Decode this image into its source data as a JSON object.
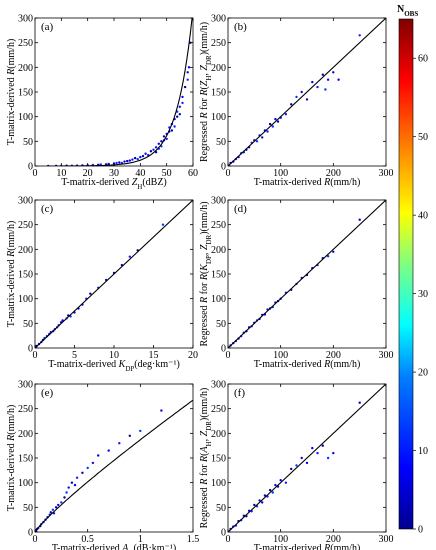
{
  "chart_data": [
    {
      "panel": "(a)",
      "type": "scatter",
      "xlabel": "T-matrix-derived Z_H(dBZ)",
      "ylabel": "T-matrix-derived R(mm/h)",
      "xlim": [
        0,
        60
      ],
      "ylim": [
        0,
        300
      ],
      "xticks": [
        0,
        10,
        20,
        30,
        40,
        50,
        60
      ],
      "yticks": [
        0,
        50,
        100,
        150,
        200,
        250,
        300
      ],
      "fit": {
        "type": "power",
        "form": "y = a*10^(b*x)",
        "a": 0.0165,
        "b": 0.0714,
        "x_range": [
          5,
          59.7
        ]
      },
      "points": [
        [
          5,
          0.3
        ],
        [
          8,
          0.5
        ],
        [
          10,
          0.4
        ],
        [
          12,
          0.6
        ],
        [
          14,
          0.7
        ],
        [
          16,
          0.9
        ],
        [
          18,
          1.2
        ],
        [
          20,
          1.5
        ],
        [
          22,
          2
        ],
        [
          24,
          2.5
        ],
        [
          25,
          3
        ],
        [
          27,
          3.5
        ],
        [
          28,
          4
        ],
        [
          30,
          5
        ],
        [
          31,
          6
        ],
        [
          32,
          7
        ],
        [
          33,
          6
        ],
        [
          34,
          9
        ],
        [
          35,
          10
        ],
        [
          36,
          11
        ],
        [
          37,
          13
        ],
        [
          38,
          16
        ],
        [
          39,
          14
        ],
        [
          40,
          18
        ],
        [
          41,
          20
        ],
        [
          42,
          25
        ],
        [
          43,
          22
        ],
        [
          44,
          30
        ],
        [
          45,
          33
        ],
        [
          46,
          38
        ],
        [
          46,
          28
        ],
        [
          47,
          45
        ],
        [
          47,
          35
        ],
        [
          48,
          50
        ],
        [
          48,
          40
        ],
        [
          49,
          52
        ],
        [
          49,
          60
        ],
        [
          50,
          65
        ],
        [
          50,
          55
        ],
        [
          51,
          70
        ],
        [
          51,
          78
        ],
        [
          52,
          85
        ],
        [
          52,
          72
        ],
        [
          53,
          95
        ],
        [
          53,
          80
        ],
        [
          54,
          100
        ],
        [
          54,
          110
        ],
        [
          55,
          120
        ],
        [
          55,
          105
        ],
        [
          56,
          140
        ],
        [
          56,
          128
        ],
        [
          57,
          160
        ],
        [
          58,
          175
        ],
        [
          58,
          190
        ],
        [
          59,
          250
        ],
        [
          58.5,
          200
        ]
      ]
    },
    {
      "panel": "(b)",
      "type": "scatter",
      "xlabel": "T-matrix-derived R(mm/h)",
      "ylabel": "Regressed R for R(Z_H, Z_DR)(mm/h)",
      "xlim": [
        0,
        300
      ],
      "ylim": [
        0,
        300
      ],
      "xticks": [
        0,
        100,
        200,
        300
      ],
      "yticks": [
        0,
        50,
        100,
        150,
        200,
        250,
        300
      ],
      "fit": {
        "type": "line",
        "points": [
          [
            0,
            0
          ],
          [
            300,
            300
          ]
        ]
      },
      "points": [
        [
          5,
          6
        ],
        [
          10,
          9
        ],
        [
          15,
          14
        ],
        [
          20,
          18
        ],
        [
          25,
          26
        ],
        [
          30,
          28
        ],
        [
          35,
          33
        ],
        [
          40,
          38
        ],
        [
          45,
          47
        ],
        [
          50,
          52
        ],
        [
          55,
          50
        ],
        [
          60,
          62
        ],
        [
          65,
          58
        ],
        [
          70,
          72
        ],
        [
          75,
          70
        ],
        [
          80,
          85
        ],
        [
          85,
          80
        ],
        [
          90,
          95
        ],
        [
          95,
          90
        ],
        [
          100,
          98
        ],
        [
          110,
          105
        ],
        [
          120,
          125
        ],
        [
          130,
          140
        ],
        [
          140,
          150
        ],
        [
          150,
          135
        ],
        [
          160,
          170
        ],
        [
          170,
          160
        ],
        [
          180,
          185
        ],
        [
          185,
          155
        ],
        [
          190,
          175
        ],
        [
          200,
          190
        ],
        [
          210,
          175
        ],
        [
          250,
          265
        ]
      ]
    },
    {
      "panel": "(c)",
      "type": "scatter",
      "xlabel": "T-matrix-derived K_DP(deg·km⁻¹)",
      "ylabel": "T-matrix-derived R(mm/h)",
      "xlim": [
        0,
        20
      ],
      "ylim": [
        0,
        300
      ],
      "xticks": [
        0,
        5,
        10,
        15,
        20
      ],
      "yticks": [
        0,
        50,
        100,
        150,
        200,
        250,
        300
      ],
      "fit": {
        "type": "line",
        "points": [
          [
            0,
            0
          ],
          [
            20,
            300
          ]
        ]
      },
      "points": [
        [
          0.2,
          4
        ],
        [
          0.5,
          8
        ],
        [
          0.8,
          12
        ],
        [
          1,
          16
        ],
        [
          1.2,
          20
        ],
        [
          1.5,
          24
        ],
        [
          1.8,
          28
        ],
        [
          2,
          32
        ],
        [
          2.3,
          34
        ],
        [
          2.5,
          38
        ],
        [
          2.8,
          42
        ],
        [
          3,
          46
        ],
        [
          3.3,
          52
        ],
        [
          3.5,
          56
        ],
        [
          4,
          60
        ],
        [
          4.2,
          66
        ],
        [
          4.5,
          64
        ],
        [
          5,
          72
        ],
        [
          5.5,
          80
        ],
        [
          6,
          88
        ],
        [
          6.5,
          100
        ],
        [
          7,
          110
        ],
        [
          8,
          122
        ],
        [
          9,
          138
        ],
        [
          10,
          152
        ],
        [
          11,
          168
        ],
        [
          12,
          185
        ],
        [
          13,
          198
        ],
        [
          16.2,
          250
        ]
      ]
    },
    {
      "panel": "(d)",
      "type": "scatter",
      "xlabel": "T-matrix-derived R(mm/h)",
      "ylabel": "Regressed R for R(K_DP, Z_DR)(mm/h)",
      "xlim": [
        0,
        300
      ],
      "ylim": [
        0,
        300
      ],
      "xticks": [
        0,
        100,
        200,
        300
      ],
      "yticks": [
        0,
        50,
        100,
        150,
        200,
        250,
        300
      ],
      "fit": {
        "type": "line",
        "points": [
          [
            0,
            0
          ],
          [
            300,
            300
          ]
        ]
      },
      "points": [
        [
          5,
          5
        ],
        [
          10,
          10
        ],
        [
          15,
          14
        ],
        [
          20,
          19
        ],
        [
          25,
          24
        ],
        [
          30,
          31
        ],
        [
          35,
          34
        ],
        [
          40,
          42
        ],
        [
          45,
          44
        ],
        [
          50,
          51
        ],
        [
          55,
          56
        ],
        [
          60,
          59
        ],
        [
          65,
          67
        ],
        [
          70,
          68
        ],
        [
          75,
          78
        ],
        [
          80,
          80
        ],
        [
          85,
          83
        ],
        [
          90,
          92
        ],
        [
          95,
          95
        ],
        [
          100,
          100
        ],
        [
          110,
          112
        ],
        [
          120,
          118
        ],
        [
          130,
          130
        ],
        [
          140,
          142
        ],
        [
          150,
          148
        ],
        [
          160,
          162
        ],
        [
          170,
          168
        ],
        [
          180,
          182
        ],
        [
          190,
          186
        ],
        [
          200,
          195
        ],
        [
          250,
          260
        ]
      ]
    },
    {
      "panel": "(e)",
      "type": "scatter",
      "xlabel": "T-matrix-derived A_H(dB·km⁻¹)",
      "ylabel": "T-matrix-derived R(mm/h)",
      "xlim": [
        0,
        1.5
      ],
      "ylim": [
        0,
        300
      ],
      "xticks": [
        0,
        0.5,
        1.0,
        1.5
      ],
      "yticks": [
        0,
        50,
        100,
        150,
        200,
        250,
        300
      ],
      "fit": {
        "type": "power",
        "form": "y = a*x^b",
        "a": 187,
        "b": 0.88,
        "x_range": [
          0,
          1.5
        ]
      },
      "points": [
        [
          0.01,
          3
        ],
        [
          0.02,
          6
        ],
        [
          0.03,
          8
        ],
        [
          0.05,
          12
        ],
        [
          0.06,
          16
        ],
        [
          0.08,
          20
        ],
        [
          0.1,
          25
        ],
        [
          0.12,
          30
        ],
        [
          0.14,
          35
        ],
        [
          0.15,
          40
        ],
        [
          0.17,
          45
        ],
        [
          0.18,
          38
        ],
        [
          0.2,
          50
        ],
        [
          0.22,
          55
        ],
        [
          0.25,
          60
        ],
        [
          0.28,
          70
        ],
        [
          0.3,
          80
        ],
        [
          0.32,
          90
        ],
        [
          0.35,
          100
        ],
        [
          0.38,
          95
        ],
        [
          0.4,
          110
        ],
        [
          0.45,
          120
        ],
        [
          0.5,
          130
        ],
        [
          0.55,
          140
        ],
        [
          0.6,
          155
        ],
        [
          0.7,
          165
        ],
        [
          0.8,
          180
        ],
        [
          0.9,
          195
        ],
        [
          1.0,
          205
        ],
        [
          1.2,
          246
        ]
      ]
    },
    {
      "panel": "(f)",
      "type": "scatter",
      "xlabel": "T-matrix-derived R(mm/h)",
      "ylabel": "Regressed R for R(A_H, Z_DR)(mm/h)",
      "xlim": [
        0,
        300
      ],
      "ylim": [
        0,
        300
      ],
      "xticks": [
        0,
        100,
        200,
        300
      ],
      "yticks": [
        0,
        50,
        100,
        150,
        200,
        250,
        300
      ],
      "fit": {
        "type": "line",
        "points": [
          [
            0,
            0
          ],
          [
            300,
            300
          ]
        ]
      },
      "points": [
        [
          5,
          6
        ],
        [
          10,
          11
        ],
        [
          15,
          13
        ],
        [
          20,
          22
        ],
        [
          25,
          24
        ],
        [
          30,
          33
        ],
        [
          35,
          32
        ],
        [
          40,
          43
        ],
        [
          45,
          42
        ],
        [
          50,
          55
        ],
        [
          55,
          52
        ],
        [
          60,
          64
        ],
        [
          65,
          60
        ],
        [
          70,
          74
        ],
        [
          75,
          72
        ],
        [
          80,
          85
        ],
        [
          85,
          80
        ],
        [
          90,
          95
        ],
        [
          95,
          92
        ],
        [
          100,
          105
        ],
        [
          110,
          100
        ],
        [
          120,
          128
        ],
        [
          130,
          135
        ],
        [
          140,
          150
        ],
        [
          150,
          140
        ],
        [
          160,
          170
        ],
        [
          170,
          160
        ],
        [
          180,
          175
        ],
        [
          190,
          150
        ],
        [
          200,
          160
        ],
        [
          250,
          262
        ]
      ]
    }
  ],
  "colorbar": {
    "title": "N_OBS",
    "min": 0,
    "max": 65,
    "ticks": [
      0,
      10,
      20,
      30,
      40,
      50,
      60
    ],
    "colormap": [
      "#00008f",
      "#0000ff",
      "#0080ff",
      "#00ffff",
      "#80ff80",
      "#ffff00",
      "#ff8000",
      "#ff0000",
      "#800000"
    ]
  }
}
